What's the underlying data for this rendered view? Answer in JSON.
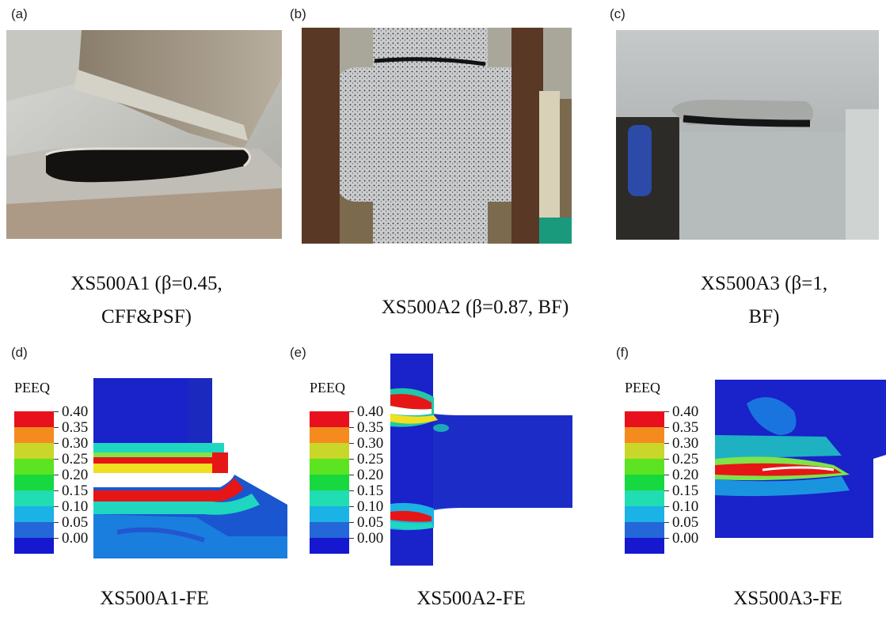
{
  "panels": {
    "a": {
      "label": "(a)",
      "caption_line1": "XS500A1 (β=0.45,",
      "caption_line2": "CFF&PSF)"
    },
    "b": {
      "label": "(b)",
      "caption_line1": "XS500A2 (β=0.87, BF)"
    },
    "c": {
      "label": "(c)",
      "caption_line1": "XS500A3 (β=1,",
      "caption_line2": "BF)"
    },
    "d": {
      "label": "(d)",
      "caption": "XS500A1-FE"
    },
    "e": {
      "label": "(e)",
      "caption": "XS500A2-FE"
    },
    "f": {
      "label": "(f)",
      "caption": "XS500A3-FE"
    }
  },
  "legend": {
    "title": "PEEQ",
    "ticks": [
      "0.40",
      "0.35",
      "0.30",
      "0.25",
      "0.20",
      "0.15",
      "0.10",
      "0.05",
      "0.00"
    ],
    "colors": [
      "#e8101c",
      "#f58a1e",
      "#c9d62a",
      "#5ce321",
      "#17d83e",
      "#20ddb2",
      "#1bb2e5",
      "#2367d8",
      "#1518cf"
    ]
  }
}
